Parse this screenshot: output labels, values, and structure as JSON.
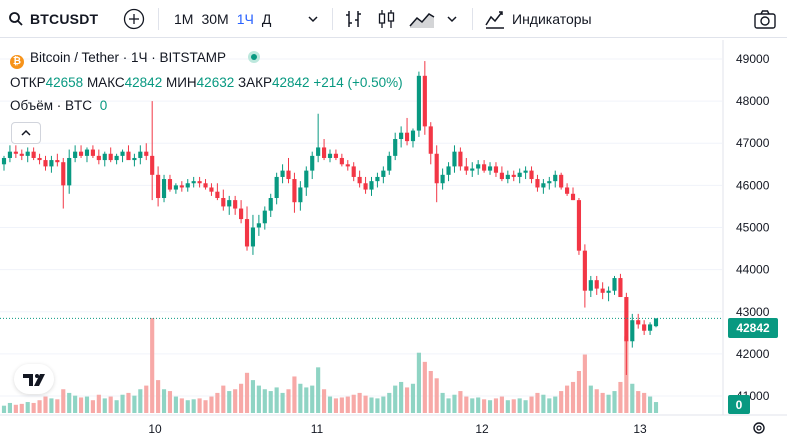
{
  "toolbar": {
    "symbol": "BTCUSDT",
    "timeframes": [
      {
        "label": "1М",
        "active": false
      },
      {
        "label": "30М",
        "active": false
      },
      {
        "label": "1Ч",
        "active": true
      },
      {
        "label": "Д",
        "active": false
      }
    ],
    "indicators_label": "Индикаторы",
    "icons": [
      "search-icon",
      "add-symbol-icon",
      "chevron-down-icon",
      "bar-style-icon",
      "candle-style-icon",
      "area-style-icon",
      "indicators-icon",
      "camera-icon"
    ]
  },
  "legend": {
    "title": "Bitcoin / Tether · 1Ч · BITSTAMP",
    "open_label": "ОТКР",
    "open": "42658",
    "high_label": "МАКС",
    "high": "42842",
    "low_label": "МИН",
    "low": "42632",
    "close_label": "ЗАКР",
    "close": "42842",
    "change": "+214 (+0.50%)",
    "volume_label": "Объём · BTC",
    "volume": "0"
  },
  "colors": {
    "up": "#089981",
    "down": "#f23645",
    "up_vol": "#8fd4c4",
    "down_vol": "#f7a9a7",
    "accent": "#2962ff",
    "grid": "#f0f3fa"
  },
  "chart_data": {
    "type": "candlestick",
    "symbol": "BTCUSDT",
    "interval": "1h",
    "y_ticks": [
      49000,
      48000,
      47000,
      46000,
      45000,
      44000,
      43000,
      42000,
      41000
    ],
    "x_ticks": [
      "10",
      "11",
      "12",
      "13"
    ],
    "ylim": [
      40550,
      49450
    ],
    "last_price": "42842",
    "volume_label": "0",
    "candles": [
      [
        46500,
        46700,
        46350,
        46650,
        40
      ],
      [
        46650,
        46950,
        46550,
        46800,
        55
      ],
      [
        46800,
        46950,
        46650,
        46750,
        45
      ],
      [
        46750,
        46850,
        46600,
        46700,
        50
      ],
      [
        46700,
        46900,
        46550,
        46800,
        60
      ],
      [
        46800,
        46900,
        46600,
        46650,
        55
      ],
      [
        46650,
        46750,
        46500,
        46600,
        70
      ],
      [
        46600,
        46700,
        46350,
        46450,
        90
      ],
      [
        46450,
        46700,
        46300,
        46600,
        80
      ],
      [
        46600,
        46750,
        46450,
        46550,
        75
      ],
      [
        46550,
        46650,
        45450,
        46000,
        130
      ],
      [
        46000,
        46850,
        45800,
        46650,
        110
      ],
      [
        46650,
        46950,
        46550,
        46800,
        95
      ],
      [
        46800,
        46950,
        46650,
        46700,
        85
      ],
      [
        46700,
        46900,
        46550,
        46850,
        90
      ],
      [
        46850,
        46950,
        46650,
        46700,
        70
      ],
      [
        46700,
        46850,
        46500,
        46600,
        100
      ],
      [
        46600,
        46800,
        46450,
        46750,
        80
      ],
      [
        46750,
        46900,
        46550,
        46600,
        90
      ],
      [
        46600,
        46750,
        46500,
        46700,
        70
      ],
      [
        46700,
        46850,
        46550,
        46800,
        100
      ],
      [
        46800,
        46950,
        46650,
        46600,
        110
      ],
      [
        46600,
        46750,
        46450,
        46650,
        95
      ],
      [
        46650,
        46950,
        46500,
        46800,
        130
      ],
      [
        46800,
        47000,
        46600,
        46700,
        150
      ],
      [
        46700,
        48000,
        45650,
        46250,
        520
      ],
      [
        46250,
        46450,
        45500,
        45700,
        180
      ],
      [
        45700,
        46250,
        45600,
        46150,
        130
      ],
      [
        46150,
        46250,
        45850,
        45900,
        120
      ],
      [
        45900,
        46050,
        45800,
        46000,
        90
      ],
      [
        46000,
        46100,
        45850,
        45950,
        80
      ],
      [
        45950,
        46150,
        45850,
        46050,
        70
      ],
      [
        46050,
        46200,
        45950,
        46100,
        75
      ],
      [
        46100,
        46200,
        45950,
        46050,
        80
      ],
      [
        46050,
        46150,
        45900,
        45950,
        70
      ],
      [
        45950,
        46050,
        45750,
        45850,
        90
      ],
      [
        45850,
        46050,
        45650,
        45700,
        110
      ],
      [
        45700,
        45900,
        45400,
        45500,
        150
      ],
      [
        45500,
        45750,
        45300,
        45650,
        120
      ],
      [
        45650,
        45750,
        45300,
        45450,
        130
      ],
      [
        45450,
        45650,
        45100,
        45200,
        160
      ],
      [
        45200,
        45500,
        44450,
        44550,
        220
      ],
      [
        44550,
        45300,
        44350,
        45000,
        180
      ],
      [
        45000,
        45300,
        44800,
        45100,
        150
      ],
      [
        45100,
        45500,
        44950,
        45400,
        130
      ],
      [
        45400,
        45800,
        45250,
        45700,
        120
      ],
      [
        45700,
        46300,
        45550,
        46200,
        140
      ],
      [
        46200,
        46500,
        46050,
        46350,
        110
      ],
      [
        46350,
        46650,
        46050,
        46150,
        130
      ],
      [
        46150,
        46300,
        45350,
        45600,
        200
      ],
      [
        45600,
        46100,
        45400,
        45950,
        160
      ],
      [
        45950,
        46450,
        45750,
        46350,
        140
      ],
      [
        46350,
        46800,
        46150,
        46700,
        150
      ],
      [
        46700,
        47700,
        46550,
        46900,
        250
      ],
      [
        46900,
        47100,
        46600,
        46650,
        130
      ],
      [
        46650,
        46850,
        46550,
        46750,
        90
      ],
      [
        46750,
        46850,
        46600,
        46650,
        80
      ],
      [
        46650,
        46750,
        46450,
        46500,
        85
      ],
      [
        46500,
        46600,
        46350,
        46450,
        90
      ],
      [
        46450,
        46550,
        46100,
        46200,
        100
      ],
      [
        46200,
        46350,
        45950,
        46050,
        110
      ],
      [
        46050,
        46200,
        45800,
        45900,
        95
      ],
      [
        45900,
        46200,
        45750,
        46100,
        85
      ],
      [
        46100,
        46300,
        45950,
        46200,
        80
      ],
      [
        46200,
        46450,
        46050,
        46350,
        90
      ],
      [
        46350,
        46800,
        46250,
        46700,
        110
      ],
      [
        46700,
        47250,
        46600,
        47100,
        150
      ],
      [
        47100,
        47400,
        46900,
        47250,
        170
      ],
      [
        47250,
        47600,
        46950,
        47050,
        140
      ],
      [
        47050,
        47350,
        46900,
        47300,
        160
      ],
      [
        47300,
        48700,
        47150,
        48600,
        330
      ],
      [
        48600,
        48950,
        47200,
        47400,
        280
      ],
      [
        47400,
        47500,
        46500,
        46750,
        230
      ],
      [
        46750,
        46950,
        45600,
        46050,
        190
      ],
      [
        46050,
        46400,
        45900,
        46250,
        110
      ],
      [
        46250,
        46550,
        46100,
        46450,
        80
      ],
      [
        46450,
        46950,
        46300,
        46800,
        100
      ],
      [
        46800,
        46900,
        46350,
        46450,
        120
      ],
      [
        46450,
        46650,
        46250,
        46350,
        90
      ],
      [
        46350,
        46550,
        46200,
        46400,
        80
      ],
      [
        46400,
        46600,
        46250,
        46500,
        85
      ],
      [
        46500,
        46600,
        46300,
        46350,
        75
      ],
      [
        46350,
        46550,
        46250,
        46450,
        70
      ],
      [
        46450,
        46550,
        46200,
        46300,
        80
      ],
      [
        46300,
        46450,
        46100,
        46150,
        90
      ],
      [
        46150,
        46350,
        46050,
        46250,
        70
      ],
      [
        46250,
        46350,
        46100,
        46200,
        75
      ],
      [
        46200,
        46400,
        46050,
        46300,
        80
      ],
      [
        46300,
        46450,
        46150,
        46350,
        70
      ],
      [
        46350,
        46450,
        46050,
        46150,
        90
      ],
      [
        46150,
        46250,
        45850,
        45950,
        110
      ],
      [
        45950,
        46150,
        45800,
        46050,
        100
      ],
      [
        46050,
        46200,
        45900,
        46100,
        80
      ],
      [
        46100,
        46350,
        45950,
        46250,
        90
      ],
      [
        46250,
        46300,
        45900,
        45950,
        120
      ],
      [
        45950,
        46050,
        45750,
        45800,
        150
      ],
      [
        45800,
        45950,
        45650,
        45650,
        170
      ],
      [
        45650,
        45700,
        44350,
        44450,
        230
      ],
      [
        44450,
        44600,
        43100,
        43500,
        320
      ],
      [
        43500,
        43850,
        43350,
        43750,
        150
      ],
      [
        43750,
        43850,
        43400,
        43550,
        130
      ],
      [
        43550,
        43700,
        43300,
        43450,
        110
      ],
      [
        43450,
        43600,
        43250,
        43500,
        100
      ],
      [
        43500,
        43850,
        43400,
        43800,
        120
      ],
      [
        43800,
        43900,
        43350,
        43350,
        170
      ],
      [
        43350,
        43450,
        41500,
        42300,
        420
      ],
      [
        42300,
        42950,
        42150,
        42800,
        160
      ],
      [
        42800,
        42950,
        42600,
        42700,
        120
      ],
      [
        42700,
        42800,
        42450,
        42550,
        110
      ],
      [
        42550,
        42750,
        42450,
        42700,
        90
      ],
      [
        42658,
        42842,
        42632,
        42842,
        60
      ]
    ]
  }
}
